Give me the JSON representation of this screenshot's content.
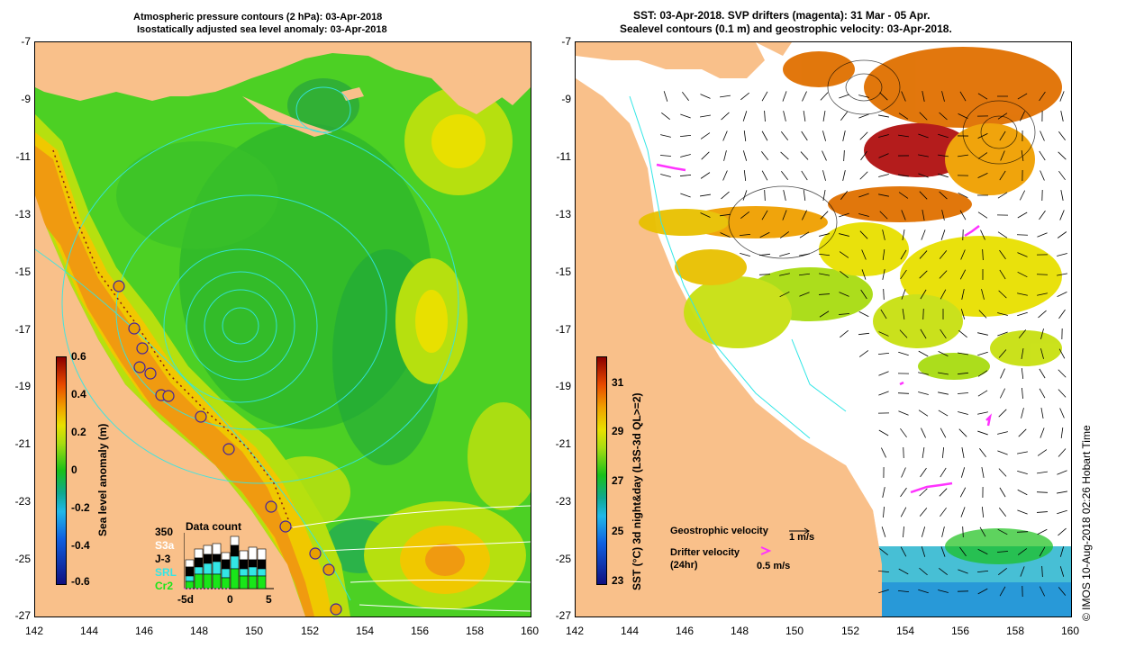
{
  "left_panel": {
    "title_line1": "Atmospheric pressure contours (2 hPa): 03-Apr-2018",
    "title_line2": "Isostatically adjusted sea level anomaly: 03-Apr-2018",
    "x_ticks": [
      "142",
      "144",
      "146",
      "148",
      "150",
      "152",
      "154",
      "156",
      "158",
      "160"
    ],
    "y_ticks": [
      "-7",
      "-9",
      "-11",
      "-13",
      "-15",
      "-17",
      "-19",
      "-21",
      "-23",
      "-25",
      "-27"
    ],
    "colorbar": {
      "label": "Sea level anomaly (m)",
      "ticks": [
        "0.6",
        "0.4",
        "0.2",
        "0",
        "-0.2",
        "-0.4",
        "-0.6"
      ]
    },
    "data_count": {
      "title": "Data count",
      "max_label": "350",
      "series": [
        {
          "name": "S3a",
          "color": "#ffffff"
        },
        {
          "name": "J-3",
          "color": "#000000"
        },
        {
          "name": "SRL",
          "color": "#33e6e6"
        },
        {
          "name": "Cr2",
          "color": "#19e619"
        }
      ],
      "x_labels": [
        "-5d",
        "0",
        "5"
      ]
    }
  },
  "right_panel": {
    "title_line1": "SST: 03-Apr-2018. SVP drifters (magenta): 31 Mar - 05 Apr.",
    "title_line2": "Sealevel contours (0.1 m) and geostrophic velocity: 03-Apr-2018.",
    "x_ticks": [
      "142",
      "144",
      "146",
      "148",
      "150",
      "152",
      "154",
      "156",
      "158",
      "160"
    ],
    "y_ticks": [
      "-7",
      "-9",
      "-11",
      "-13",
      "-15",
      "-17",
      "-19",
      "-21",
      "-23",
      "-25",
      "-27"
    ],
    "colorbar": {
      "label": "SST (°C) 3d night&day (L3S-3d QL>=2)",
      "ticks": [
        "31",
        "29",
        "27",
        "25",
        "23"
      ]
    },
    "legend": {
      "geo_label": "Geostrophic velocity",
      "geo_scale": "1 m/s",
      "drifter_label_1": "Drifter velocity",
      "drifter_label_2": "(24hr)",
      "drifter_scale": "0.5 m/s"
    },
    "credit": "© IMOS 10-Aug-2018 02:26 Hobart Time"
  },
  "colors": {
    "land": "#f9c08a",
    "sla_green": "#4cd024",
    "drifter": "#ff33ff"
  }
}
